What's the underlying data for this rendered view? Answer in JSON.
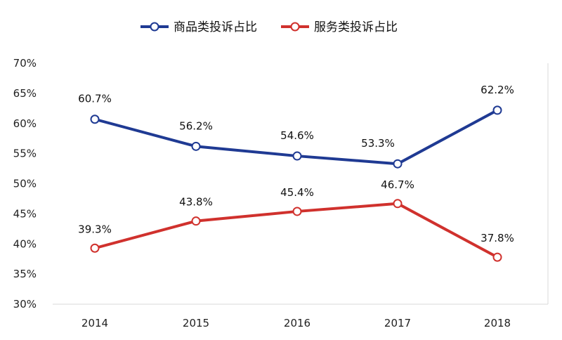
{
  "chart_data": {
    "type": "line",
    "title": "",
    "xlabel": "",
    "ylabel": "",
    "categories": [
      "2014",
      "2015",
      "2016",
      "2017",
      "2018"
    ],
    "ylim": [
      30,
      70
    ],
    "yticks": [
      30,
      35,
      40,
      45,
      50,
      55,
      60,
      65,
      70
    ],
    "ytick_labels": [
      "30%",
      "35%",
      "40%",
      "45%",
      "50%",
      "55%",
      "60%",
      "65%",
      "70%"
    ],
    "legend_position": "top-center",
    "grid": false,
    "series": [
      {
        "name": "商品类投诉占比",
        "color": "#1f3a93",
        "values": [
          60.7,
          56.2,
          54.6,
          53.3,
          62.2
        ],
        "labels": [
          "60.7%",
          "56.2%",
          "54.6%",
          "53.3%",
          "62.2%"
        ]
      },
      {
        "name": "服务类投诉占比",
        "color": "#d0312d",
        "values": [
          39.3,
          43.8,
          45.4,
          46.7,
          37.8
        ],
        "labels": [
          "39.3%",
          "43.8%",
          "45.4%",
          "46.7%",
          "37.8%"
        ]
      }
    ]
  }
}
